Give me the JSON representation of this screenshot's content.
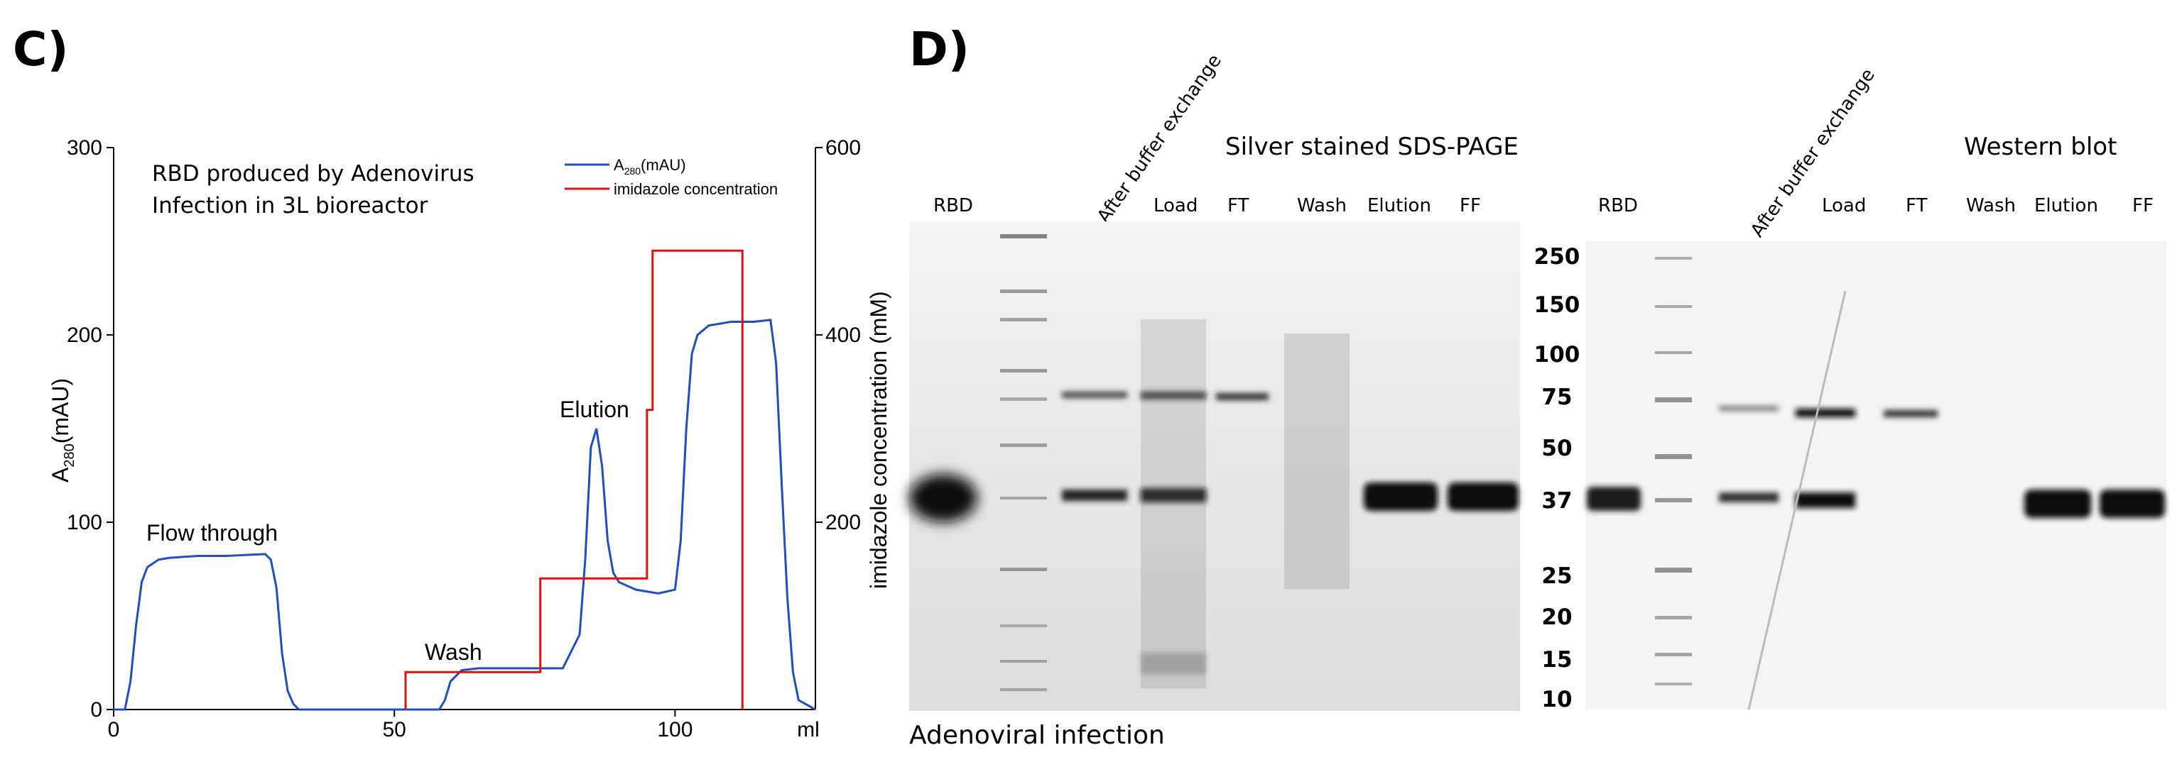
{
  "panel_c": {
    "letter": "C)",
    "annotation_line1": "RBD produced by Adenovirus",
    "annotation_line2": "Infection in 3L bioreactor",
    "peak_labels": [
      "Flow through",
      "Wash",
      "Elution"
    ],
    "legend": {
      "a280": "A",
      "a280_sub": "280",
      "a280_unit": "(mAU)",
      "imidazole": "imidazole concentration"
    },
    "left_axis_label": "A",
    "left_axis_sub": "280",
    "left_axis_unit": "(mAU)",
    "right_axis_label": "imidazole concentration (mM)",
    "x_unit": "ml"
  },
  "chart_data": {
    "type": "line",
    "xlim": [
      0,
      125
    ],
    "ylim": [
      0,
      300
    ],
    "y2lim": [
      0,
      600
    ],
    "x_ticks": [
      "0",
      "50",
      "100"
    ],
    "y_ticks": [
      "0",
      "100",
      "200",
      "300"
    ],
    "y2_ticks": [
      "200",
      "400",
      "600"
    ],
    "colors": {
      "a280": "#1f4fbf",
      "imidazole": "#e01010"
    },
    "series": [
      {
        "name": "A280(mAU)",
        "axis": "left",
        "x": [
          0,
          2,
          3,
          4,
          5,
          6,
          8,
          10,
          15,
          20,
          27,
          28,
          29,
          30,
          31,
          32,
          33,
          35,
          50,
          58,
          59,
          60,
          62,
          65,
          70,
          75,
          80,
          83,
          84,
          85,
          86,
          87,
          88,
          89,
          90,
          93,
          97,
          100,
          101,
          102,
          103,
          104,
          106,
          110,
          114,
          117,
          118,
          119,
          120,
          121,
          122,
          125
        ],
        "y": [
          0,
          0,
          15,
          45,
          68,
          76,
          80,
          81,
          82,
          82,
          83,
          80,
          65,
          30,
          10,
          3,
          0,
          0,
          0,
          0,
          5,
          15,
          21,
          22,
          22,
          22,
          22,
          40,
          80,
          140,
          150,
          130,
          90,
          73,
          68,
          64,
          62,
          64,
          90,
          150,
          190,
          200,
          205,
          207,
          207,
          208,
          185,
          120,
          60,
          20,
          5,
          0
        ]
      },
      {
        "name": "imidazole concentration",
        "axis": "right",
        "x": [
          52,
          52,
          76,
          76,
          95,
          95,
          96,
          96,
          112,
          112
        ],
        "y": [
          0,
          40,
          40,
          140,
          140,
          320,
          320,
          490,
          490,
          0
        ]
      }
    ]
  },
  "panel_d": {
    "letter": "D)",
    "silver_title": "Silver stained SDS-PAGE",
    "western_title": "Western blot",
    "silver_lanes": [
      "RBD",
      "After buffer exchange",
      "Load",
      "FT",
      "Wash",
      "Elution",
      "FF"
    ],
    "western_lanes": [
      "RBD",
      "After buffer exchange",
      "Load",
      "FT",
      "Wash",
      "Elution",
      "FF"
    ],
    "mw_markers": [
      "250",
      "150",
      "100",
      "75",
      "50",
      "37",
      "25",
      "20",
      "15",
      "10"
    ],
    "caption": "Adenoviral infection"
  }
}
